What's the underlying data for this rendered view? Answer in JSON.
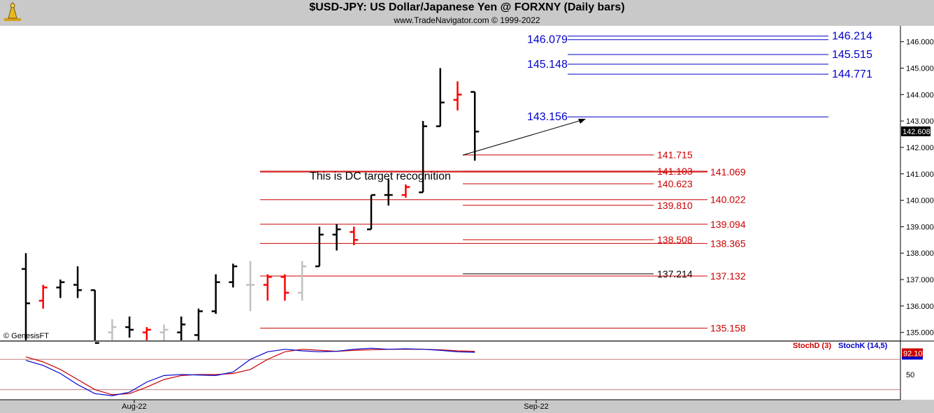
{
  "header": {
    "title": "$USD-JPY:  US Dollar/Japanese Yen @ FORXNY  (Daily bars)",
    "copyright": "www.TradeNavigator.com © 1999-2022"
  },
  "watermark": "© GenesisFT",
  "annotation": "This is DC target recognition",
  "last_price": "142.608",
  "colors": {
    "panel_bg": "#ffffff",
    "frame_bg": "#c9c9c9",
    "up_bar": "#000000",
    "down_bar": "#ff0000",
    "gray_bar": "#c0c0c0",
    "blue_level": "#0000cc",
    "red_level": "#cc0000",
    "stoch_d": "#cc0000",
    "stoch_k": "#0000cc"
  },
  "chart_data": [
    {
      "type": "ohlc",
      "ylim": [
        134.7,
        146.6
      ],
      "yticks": [
        "146.000",
        "145.000",
        "144.000",
        "143.000",
        "142.000",
        "141.000",
        "140.000",
        "139.000",
        "138.000",
        "137.000",
        "136.000",
        "135.000"
      ],
      "xlabels": [
        "Aug-22",
        "Sep-22"
      ],
      "bars": [
        {
          "o": 137.4,
          "h": 138.0,
          "l": 134.6,
          "c": 136.1,
          "col": "black"
        },
        {
          "o": 136.2,
          "h": 136.8,
          "l": 135.9,
          "c": 136.7,
          "col": "red"
        },
        {
          "o": 136.7,
          "h": 137.0,
          "l": 136.3,
          "c": 136.9,
          "col": "black"
        },
        {
          "o": 136.8,
          "h": 137.5,
          "l": 136.3,
          "c": 136.6,
          "col": "black"
        },
        {
          "o": 136.6,
          "h": 136.6,
          "l": 134.5,
          "c": 134.6,
          "col": "black"
        },
        {
          "o": 135.0,
          "h": 135.5,
          "l": 134.6,
          "c": 135.2,
          "col": "gray"
        },
        {
          "o": 135.2,
          "h": 135.6,
          "l": 134.8,
          "c": 135.1,
          "col": "black"
        },
        {
          "o": 135.0,
          "h": 135.2,
          "l": 134.7,
          "c": 135.1,
          "col": "red"
        },
        {
          "o": 135.0,
          "h": 135.3,
          "l": 134.6,
          "c": 135.1,
          "col": "gray"
        },
        {
          "o": 135.0,
          "h": 135.6,
          "l": 134.7,
          "c": 135.3,
          "col": "black"
        },
        {
          "o": 134.9,
          "h": 135.9,
          "l": 134.7,
          "c": 135.8,
          "col": "black"
        },
        {
          "o": 135.8,
          "h": 137.2,
          "l": 135.7,
          "c": 136.9,
          "col": "black"
        },
        {
          "o": 136.9,
          "h": 137.6,
          "l": 136.7,
          "c": 137.5,
          "col": "black"
        },
        {
          "o": 136.8,
          "h": 137.7,
          "l": 135.8,
          "c": 136.8,
          "col": "gray"
        },
        {
          "o": 136.8,
          "h": 137.2,
          "l": 136.2,
          "c": 137.1,
          "col": "red"
        },
        {
          "o": 137.1,
          "h": 137.2,
          "l": 136.2,
          "c": 136.5,
          "col": "red"
        },
        {
          "o": 136.5,
          "h": 137.7,
          "l": 136.2,
          "c": 137.5,
          "col": "gray"
        },
        {
          "o": 137.5,
          "h": 139.0,
          "l": 137.5,
          "c": 138.7,
          "col": "black"
        },
        {
          "o": 138.7,
          "h": 139.1,
          "l": 138.1,
          "c": 138.9,
          "col": "black"
        },
        {
          "o": 138.8,
          "h": 139.0,
          "l": 138.3,
          "c": 138.5,
          "col": "red"
        },
        {
          "o": 138.9,
          "h": 140.2,
          "l": 138.9,
          "c": 140.2,
          "col": "black"
        },
        {
          "o": 140.2,
          "h": 140.8,
          "l": 139.8,
          "c": 140.2,
          "col": "black"
        },
        {
          "o": 140.2,
          "h": 140.6,
          "l": 140.1,
          "c": 140.5,
          "col": "red"
        },
        {
          "o": 140.3,
          "h": 143.0,
          "l": 140.3,
          "c": 142.8,
          "col": "black"
        },
        {
          "o": 142.8,
          "h": 145.0,
          "l": 142.8,
          "c": 143.7,
          "col": "black"
        },
        {
          "o": 143.8,
          "h": 144.5,
          "l": 143.4,
          "c": 144.0,
          "col": "red"
        },
        {
          "o": 144.1,
          "h": 144.1,
          "l": 141.5,
          "c": 142.6,
          "col": "black"
        }
      ],
      "levels": [
        {
          "value": 146.214,
          "label": "146.214",
          "color": "blue",
          "side": "right"
        },
        {
          "value": 146.079,
          "label": "146.079",
          "color": "blue",
          "side": "left"
        },
        {
          "value": 145.515,
          "label": "145.515",
          "color": "blue",
          "side": "right"
        },
        {
          "value": 145.148,
          "label": "145.148",
          "color": "blue",
          "side": "left"
        },
        {
          "value": 144.771,
          "label": "144.771",
          "color": "blue",
          "side": "right"
        },
        {
          "value": 143.156,
          "label": "143.156",
          "color": "blue",
          "side": "left"
        },
        {
          "value": 141.715,
          "label": "141.715",
          "color": "red",
          "side": "mid"
        },
        {
          "value": 141.103,
          "label": "141.103",
          "color": "red",
          "side": "mid"
        },
        {
          "value": 141.069,
          "label": "141.069",
          "color": "red",
          "side": "right"
        },
        {
          "value": 140.623,
          "label": "140.623",
          "color": "red",
          "side": "mid"
        },
        {
          "value": 140.022,
          "label": "140.022",
          "color": "red",
          "side": "right"
        },
        {
          "value": 139.81,
          "label": "139.810",
          "color": "red",
          "side": "mid"
        },
        {
          "value": 139.094,
          "label": "139.094",
          "color": "red",
          "side": "right"
        },
        {
          "value": 138.508,
          "label": "138.508",
          "color": "red",
          "side": "mid"
        },
        {
          "value": 138.365,
          "label": "138.365",
          "color": "red",
          "side": "right"
        },
        {
          "value": 137.214,
          "label": "137.214",
          "color": "black",
          "side": "mid"
        },
        {
          "value": 137.132,
          "label": "137.132",
          "color": "red",
          "side": "right"
        },
        {
          "value": 135.158,
          "label": "135.158",
          "color": "red",
          "side": "right"
        }
      ]
    },
    {
      "type": "line",
      "series": [
        {
          "name": "StochD (3)",
          "color": "red",
          "values": [
            85,
            75,
            60,
            40,
            20,
            10,
            12,
            25,
            40,
            48,
            50,
            50,
            52,
            60,
            80,
            95,
            100,
            98,
            96,
            98,
            99,
            100,
            100,
            100,
            99,
            97,
            96
          ]
        },
        {
          "name": "StochK (14,5)",
          "color": "blue",
          "values": [
            78,
            68,
            52,
            30,
            12,
            8,
            15,
            35,
            48,
            50,
            49,
            48,
            55,
            80,
            95,
            100,
            97,
            95,
            96,
            100,
            102,
            100,
            101,
            100,
            98,
            95,
            94
          ]
        }
      ],
      "ylim": [
        0,
        115
      ],
      "yticks": [
        "50"
      ],
      "value_label": "92.10"
    }
  ]
}
